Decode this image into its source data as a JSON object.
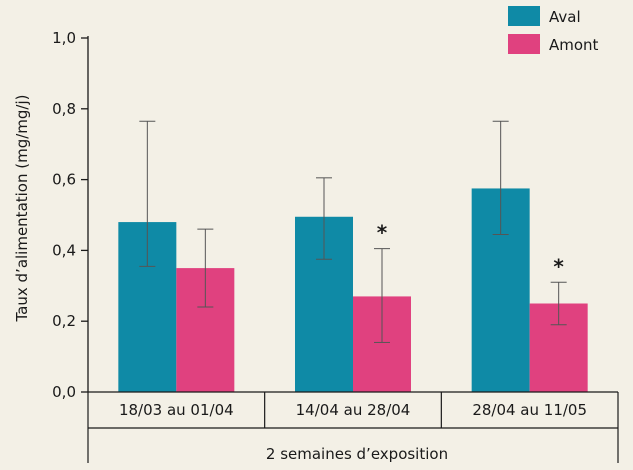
{
  "chart_data": {
    "type": "bar",
    "title": "",
    "ylabel": "Taux d’alimentation (mg/mg/j)",
    "xlabel": "2 semaines d’exposition",
    "categories": [
      "18/03 au 01/04",
      "14/04 au 28/04",
      "28/04 au 11/05"
    ],
    "ylim": [
      0,
      1.0
    ],
    "yticks": [
      "0,0",
      "0,2",
      "0,4",
      "0,6",
      "0,8",
      "1,0"
    ],
    "grid": false,
    "legend_position": "top-right",
    "series": [
      {
        "name": "Aval",
        "color": "#0f8aa6",
        "values": [
          0.48,
          0.495,
          0.575
        ],
        "err_low": [
          0.355,
          0.375,
          0.445
        ],
        "err_high": [
          0.765,
          0.605,
          0.765
        ],
        "significance": [
          "",
          "",
          ""
        ]
      },
      {
        "name": "Amont",
        "color": "#e0417f",
        "values": [
          0.35,
          0.27,
          0.25
        ],
        "err_low": [
          0.24,
          0.14,
          0.19
        ],
        "err_high": [
          0.46,
          0.405,
          0.31
        ],
        "significance": [
          "",
          "*",
          "*"
        ]
      }
    ]
  }
}
